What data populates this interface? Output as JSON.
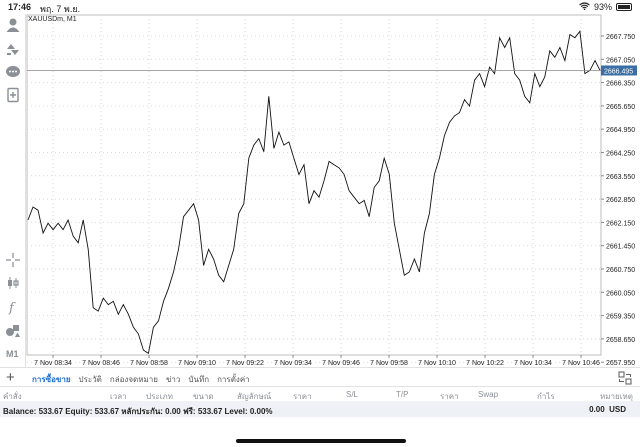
{
  "status_bar": {
    "time": "17:46",
    "date": "พฤ. 7 พ.ย.",
    "battery": "93%"
  },
  "toolbar": {
    "items": [
      {
        "name": "account-icon"
      },
      {
        "name": "trade-icon"
      },
      {
        "name": "chat-icon"
      },
      {
        "name": "news-icon"
      },
      {
        "name": "crosshair-icon"
      },
      {
        "name": "candles-icon"
      },
      {
        "name": "indicators-icon"
      },
      {
        "name": "objects-icon"
      }
    ],
    "timeframe": "M1"
  },
  "chart": {
    "symbol": "XAUUSDm, M1",
    "current_price": "2666.495",
    "colors": {
      "line": "#111111",
      "grid": "#d9d9d9",
      "price_tag": "#3a6ea5",
      "price_line": "#8a8a8a"
    }
  },
  "chart_data": {
    "type": "line",
    "y_ticks": [
      "2667.750",
      "2667.050",
      "2666.350",
      "2665.650",
      "2664.950",
      "2664.250",
      "2663.550",
      "2662.850",
      "2662.150",
      "2661.450",
      "2660.750",
      "2660.050",
      "2659.350",
      "2658.650",
      "2657.950"
    ],
    "x_ticks": [
      "7 Nov 08:34",
      "7 Nov 08:46",
      "7 Nov 08:58",
      "7 Nov 09:10",
      "7 Nov 09:22",
      "7 Nov 09:34",
      "7 Nov 09:46",
      "7 Nov 09:58",
      "7 Nov 10:10",
      "7 Nov 10:22",
      "7 Nov 10:34",
      "7 Nov 10:46"
    ],
    "ylim": [
      2657.75,
      2668.2
    ],
    "grid": true,
    "values": [
      2661.9,
      2662.3,
      2662.2,
      2661.5,
      2661.8,
      2661.6,
      2661.8,
      2661.6,
      2661.9,
      2661.4,
      2661.2,
      2661.9,
      2661.0,
      2659.2,
      2659.1,
      2659.5,
      2659.3,
      2659.4,
      2659.0,
      2659.3,
      2659.0,
      2658.6,
      2658.4,
      2657.9,
      2657.8,
      2658.6,
      2658.8,
      2659.4,
      2659.8,
      2660.3,
      2661.0,
      2662.0,
      2662.2,
      2662.4,
      2661.9,
      2660.5,
      2661.0,
      2660.7,
      2660.2,
      2660.0,
      2660.5,
      2661.0,
      2662.1,
      2662.4,
      2663.8,
      2664.2,
      2664.4,
      2664.0,
      2665.7,
      2664.1,
      2664.6,
      2664.2,
      2664.3,
      2663.8,
      2663.3,
      2663.6,
      2662.4,
      2662.8,
      2662.6,
      2663.1,
      2663.7,
      2663.6,
      2663.5,
      2663.3,
      2662.8,
      2662.6,
      2662.4,
      2662.5,
      2662.0,
      2662.9,
      2663.1,
      2663.8,
      2663.3,
      2661.8,
      2661.0,
      2660.2,
      2660.3,
      2660.7,
      2660.3,
      2661.5,
      2662.1,
      2663.3,
      2663.8,
      2664.5,
      2664.9,
      2665.1,
      2665.2,
      2665.6,
      2665.4,
      2666.2,
      2666.4,
      2666.0,
      2666.6,
      2666.4,
      2667.5,
      2667.2,
      2667.5,
      2666.4,
      2666.2,
      2665.7,
      2665.5,
      2666.4,
      2666.0,
      2666.3,
      2667.1,
      2666.9,
      2667.2,
      2666.8,
      2667.6,
      2667.5,
      2667.7,
      2666.4,
      2666.5,
      2666.8,
      2666.5
    ]
  },
  "tabs": {
    "add_label": "+",
    "items": [
      {
        "label": "การซื้อขาย",
        "active": true
      },
      {
        "label": "ประวัติ",
        "active": false
      },
      {
        "label": "กล่องจดหมาย",
        "active": false
      },
      {
        "label": "ข่าว",
        "active": false
      },
      {
        "label": "บันทึก",
        "active": false
      },
      {
        "label": "การตั้งค่า",
        "active": false
      }
    ]
  },
  "columns": [
    "คำสั่ง",
    "เวลา",
    "ประเภท",
    "ขนาด",
    "สัญลักษณ์",
    "ราคา",
    "S/L",
    "T/P",
    "ราคา",
    "Swap",
    "กำไร",
    "หมายเหตุ"
  ],
  "account": {
    "balance_text": "Balance: 533.67 Equity: 533.67 หลักประกัน: 0.00 ฟรี: 533.67 Level: 0.00%",
    "profit": "0.00",
    "currency": "USD"
  }
}
